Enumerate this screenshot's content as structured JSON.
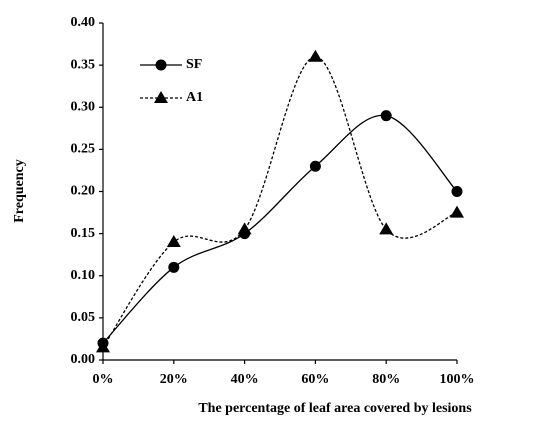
{
  "chart_data": {
    "type": "line",
    "smooth": true,
    "x_label": "The percentage of leaf area covered by lesions",
    "y_label": "Frequency",
    "x": [
      0,
      20,
      40,
      60,
      80,
      100
    ],
    "series": [
      {
        "name": "SF",
        "color": "#000000",
        "line_style": "solid",
        "marker": "circle",
        "values": [
          0.02,
          0.11,
          0.15,
          0.23,
          0.29,
          0.2
        ]
      },
      {
        "name": "A1",
        "color": "#000000",
        "line_style": "dashed",
        "marker": "triangle",
        "values": [
          0.015,
          0.14,
          0.155,
          0.36,
          0.155,
          0.175
        ]
      }
    ],
    "xlim": [
      0,
      100
    ],
    "xticks": [
      {
        "value": 0,
        "label": "0%"
      },
      {
        "value": 20,
        "label": "20%"
      },
      {
        "value": 40,
        "label": "40%"
      },
      {
        "value": 60,
        "label": "60%"
      },
      {
        "value": 80,
        "label": "80%"
      },
      {
        "value": 100,
        "label": "100%"
      }
    ],
    "ylim": [
      0,
      0.4
    ],
    "yticks": [
      {
        "value": 0,
        "label": "0.00"
      },
      {
        "value": 0.05,
        "label": "0.05"
      },
      {
        "value": 0.1,
        "label": "0.10"
      },
      {
        "value": 0.15,
        "label": "0.15"
      },
      {
        "value": 0.2,
        "label": "0.20"
      },
      {
        "value": 0.25,
        "label": "0.25"
      },
      {
        "value": 0.3,
        "label": "0.30"
      },
      {
        "value": 0.35,
        "label": "0.35"
      },
      {
        "value": 0.4,
        "label": "0.40"
      }
    ],
    "grid": false,
    "legend_position": "upper-left"
  }
}
